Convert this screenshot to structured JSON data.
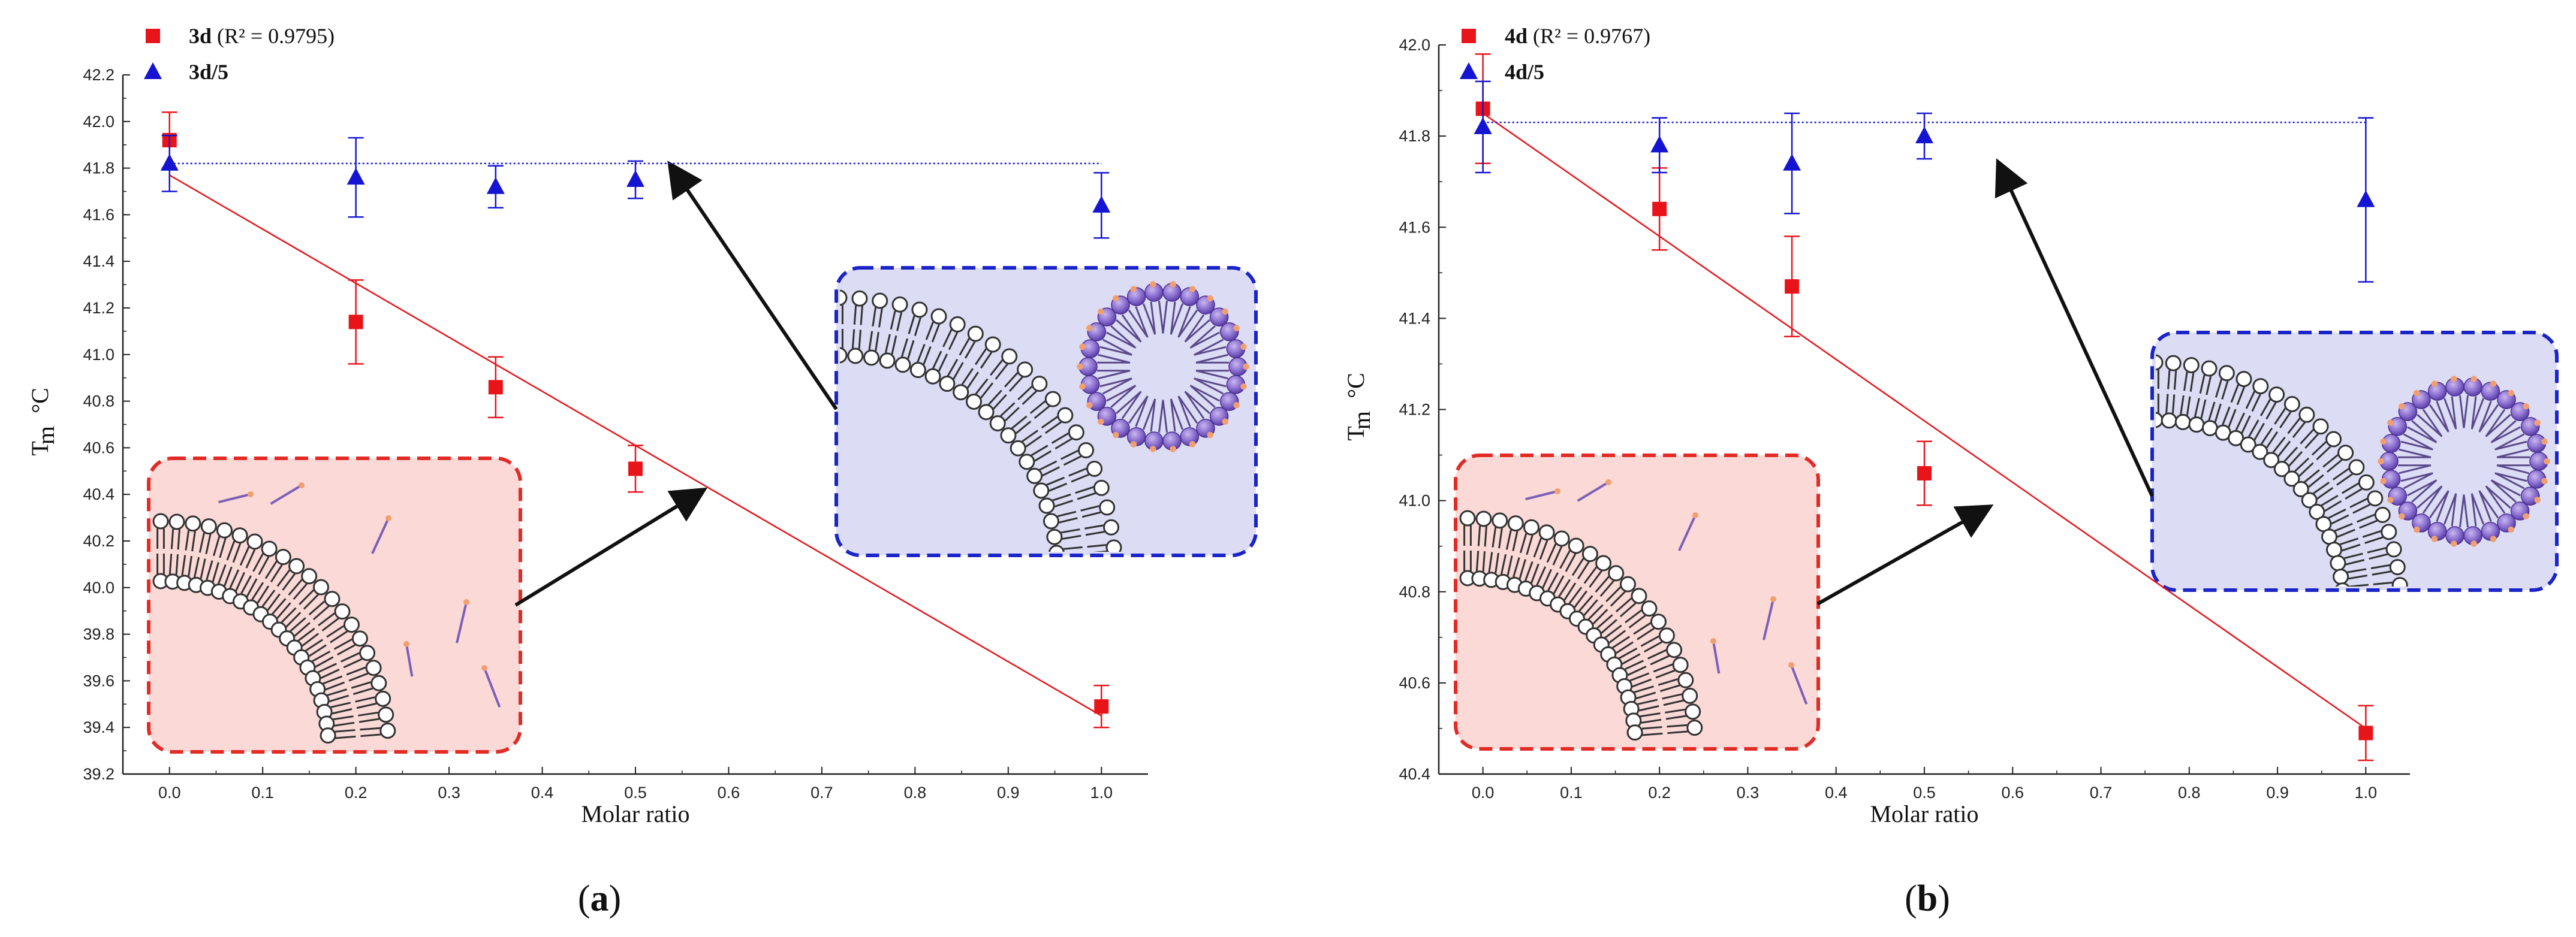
{
  "colors": {
    "series_red": "#e8141a",
    "series_blue": "#1414d2",
    "inset_red_fill": "#fbd9d7",
    "inset_red_border": "#e32b26",
    "inset_blue_fill": "#dcdcf5",
    "inset_blue_border": "#1a24c8",
    "lipid_head": "#9b9b9b",
    "drug_purple": "#7b5fb8",
    "drug_head": "#f0a070"
  },
  "chart_data": [
    {
      "type": "scatter",
      "panel_label": "a",
      "xlabel": "Molar ratio",
      "ylabel_main": "T",
      "ylabel_sub": "m",
      "ylabel_unit": "°C",
      "xlim": [
        -0.05,
        1.05
      ],
      "ylim": [
        39.2,
        42.2
      ],
      "xticks": [
        "0.0",
        "0.1",
        "0.2",
        "0.3",
        "0.4",
        "0.5",
        "0.6",
        "0.7",
        "0.8",
        "0.9",
        "1.0"
      ],
      "yticks": [
        "39.2",
        "39.4",
        "39.6",
        "39.8",
        "40.0",
        "40.2",
        "40.4",
        "40.6",
        "40.8",
        "41.0",
        "41.2",
        "41.4",
        "41.6",
        "41.8",
        "42.0",
        "42.2"
      ],
      "series": [
        {
          "name": "3d",
          "legend_bold": "3d",
          "legend_rest": " (R² = 0.9795)",
          "marker": "square",
          "x": [
            0.0,
            0.2,
            0.35,
            0.5,
            1.0
          ],
          "y": [
            41.92,
            41.14,
            40.86,
            40.51,
            39.49
          ],
          "yerr": [
            0.12,
            0.18,
            0.13,
            0.1,
            0.09
          ],
          "fit": {
            "type": "linear",
            "x": [
              0.0,
              1.0
            ],
            "y": [
              41.77,
              39.45
            ]
          }
        },
        {
          "name": "3d/5",
          "legend_bold": "3d/5",
          "legend_rest": "",
          "marker": "triangle",
          "x": [
            0.0,
            0.2,
            0.35,
            0.5,
            1.0
          ],
          "y": [
            41.82,
            41.76,
            41.72,
            41.75,
            41.64
          ],
          "yerr": [
            0.12,
            0.17,
            0.09,
            0.08,
            0.14
          ],
          "fit": {
            "type": "constant",
            "x": [
              0.0,
              1.0
            ],
            "y": [
              41.82,
              41.82
            ]
          }
        }
      ]
    },
    {
      "type": "scatter",
      "panel_label": "b",
      "xlabel": "Molar ratio",
      "ylabel_main": "T",
      "ylabel_sub": "m",
      "ylabel_unit": "°C",
      "xlim": [
        -0.05,
        1.05
      ],
      "ylim": [
        40.4,
        42.0
      ],
      "xticks": [
        "0.0",
        "0.1",
        "0.2",
        "0.3",
        "0.4",
        "0.5",
        "0.6",
        "0.7",
        "0.8",
        "0.9",
        "1.0"
      ],
      "yticks": [
        "40.4",
        "40.6",
        "40.8",
        "41.0",
        "41.2",
        "41.4",
        "41.6",
        "41.8",
        "42.0"
      ],
      "series": [
        {
          "name": "4d",
          "legend_bold": "4d",
          "legend_rest": " (R² = 0.9767)",
          "marker": "square",
          "x": [
            0.0,
            0.2,
            0.35,
            0.5,
            1.0
          ],
          "y": [
            41.86,
            41.64,
            41.47,
            41.06,
            40.49
          ],
          "yerr": [
            0.12,
            0.09,
            0.11,
            0.07,
            0.06
          ],
          "fit": {
            "type": "linear",
            "x": [
              0.0,
              1.0
            ],
            "y": [
              41.85,
              40.5
            ]
          }
        },
        {
          "name": "4d/5",
          "legend_bold": "4d/5",
          "legend_rest": "",
          "marker": "triangle",
          "x": [
            0.0,
            0.2,
            0.35,
            0.5,
            1.0
          ],
          "y": [
            41.82,
            41.78,
            41.74,
            41.8,
            41.66
          ],
          "yerr": [
            0.1,
            0.06,
            0.11,
            0.05,
            0.18
          ],
          "fit": {
            "type": "constant",
            "x": [
              0.0,
              1.0
            ],
            "y": [
              41.83,
              41.83
            ]
          }
        }
      ]
    }
  ]
}
